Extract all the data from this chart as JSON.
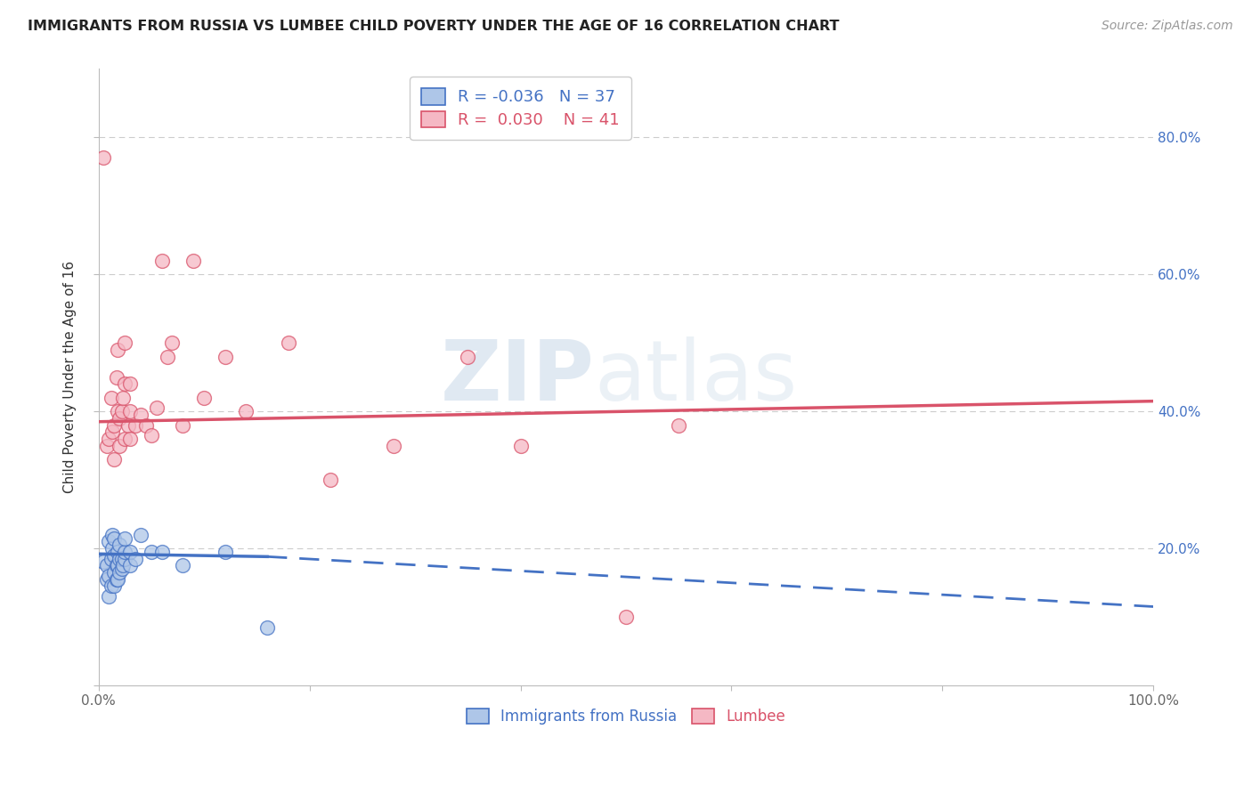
{
  "title": "IMMIGRANTS FROM RUSSIA VS LUMBEE CHILD POVERTY UNDER THE AGE OF 16 CORRELATION CHART",
  "source": "Source: ZipAtlas.com",
  "ylabel": "Child Poverty Under the Age of 16",
  "xlim": [
    0,
    1.0
  ],
  "ylim": [
    0,
    0.9
  ],
  "legend_r_blue": "-0.036",
  "legend_n_blue": "37",
  "legend_r_pink": "0.030",
  "legend_n_pink": "41",
  "blue_color": "#aec6e8",
  "pink_color": "#f5b8c4",
  "blue_line_color": "#4472c4",
  "pink_line_color": "#d9536a",
  "grid_color": "#cccccc",
  "watermark_zip": "ZIP",
  "watermark_atlas": "atlas",
  "blue_points_x": [
    0.005,
    0.008,
    0.008,
    0.01,
    0.01,
    0.01,
    0.012,
    0.012,
    0.013,
    0.013,
    0.015,
    0.015,
    0.015,
    0.015,
    0.017,
    0.017,
    0.018,
    0.018,
    0.018,
    0.02,
    0.02,
    0.02,
    0.022,
    0.022,
    0.023,
    0.025,
    0.025,
    0.025,
    0.03,
    0.03,
    0.035,
    0.04,
    0.05,
    0.06,
    0.08,
    0.12,
    0.16
  ],
  "blue_points_y": [
    0.18,
    0.155,
    0.175,
    0.13,
    0.16,
    0.21,
    0.145,
    0.185,
    0.2,
    0.22,
    0.145,
    0.165,
    0.19,
    0.215,
    0.155,
    0.175,
    0.155,
    0.175,
    0.195,
    0.165,
    0.185,
    0.205,
    0.17,
    0.185,
    0.175,
    0.185,
    0.195,
    0.215,
    0.175,
    0.195,
    0.185,
    0.22,
    0.195,
    0.195,
    0.175,
    0.195,
    0.085
  ],
  "pink_points_x": [
    0.005,
    0.008,
    0.01,
    0.012,
    0.013,
    0.015,
    0.015,
    0.017,
    0.018,
    0.018,
    0.02,
    0.02,
    0.022,
    0.023,
    0.025,
    0.025,
    0.025,
    0.028,
    0.03,
    0.03,
    0.03,
    0.035,
    0.04,
    0.045,
    0.05,
    0.055,
    0.06,
    0.065,
    0.07,
    0.08,
    0.09,
    0.1,
    0.12,
    0.14,
    0.18,
    0.22,
    0.28,
    0.35,
    0.4,
    0.5,
    0.55
  ],
  "pink_points_y": [
    0.77,
    0.35,
    0.36,
    0.42,
    0.37,
    0.33,
    0.38,
    0.45,
    0.4,
    0.49,
    0.35,
    0.39,
    0.4,
    0.42,
    0.36,
    0.44,
    0.5,
    0.38,
    0.36,
    0.4,
    0.44,
    0.38,
    0.395,
    0.38,
    0.365,
    0.405,
    0.62,
    0.48,
    0.5,
    0.38,
    0.62,
    0.42,
    0.48,
    0.4,
    0.5,
    0.3,
    0.35,
    0.48,
    0.35,
    0.1,
    0.38
  ],
  "blue_line_x_start": 0.0,
  "blue_line_x_solid_end": 0.16,
  "blue_line_x_dashed_end": 1.0,
  "blue_line_y_start": 0.192,
  "blue_line_y_solid_end": 0.188,
  "blue_line_y_dashed_end": 0.115,
  "pink_line_y_start": 0.385,
  "pink_line_y_end": 0.415
}
